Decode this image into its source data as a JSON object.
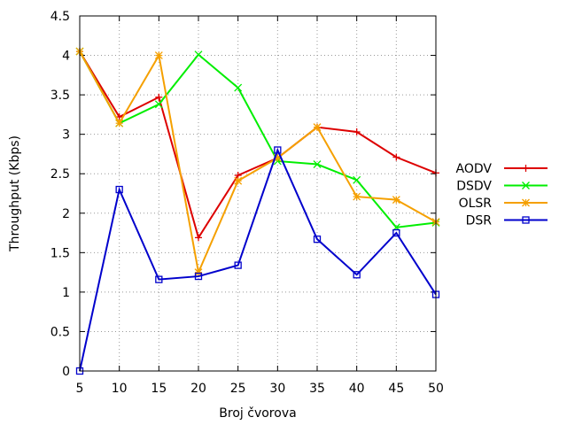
{
  "chart_data": {
    "type": "line",
    "title": "",
    "xlabel": "Broj čvorova",
    "ylabel": "Throughput (Kbps)",
    "x": [
      5,
      10,
      15,
      20,
      25,
      30,
      35,
      40,
      45,
      50
    ],
    "xlim": [
      5,
      50
    ],
    "ylim": [
      0,
      4.5
    ],
    "x_ticks": [
      "5",
      "10",
      "15",
      "20",
      "25",
      "30",
      "35",
      "40",
      "45",
      "50"
    ],
    "y_ticks": [
      "0",
      "0.5",
      "1",
      "1.5",
      "2",
      "2.5",
      "3",
      "3.5",
      "4",
      "4.5"
    ],
    "grid": true,
    "legend_position": "right",
    "series": [
      {
        "name": "AODV",
        "color": "#dd0000",
        "marker": "plus",
        "values": [
          4.05,
          3.22,
          3.47,
          1.69,
          2.48,
          2.7,
          3.09,
          3.03,
          2.71,
          2.51
        ]
      },
      {
        "name": "DSDV",
        "color": "#00ee00",
        "marker": "cross",
        "values": [
          4.05,
          3.14,
          3.38,
          4.01,
          3.59,
          2.66,
          2.62,
          2.42,
          1.82,
          1.88
        ]
      },
      {
        "name": "OLSR",
        "color": "#f5a000",
        "marker": "star",
        "values": [
          4.05,
          3.14,
          4.0,
          1.25,
          2.41,
          2.7,
          3.09,
          2.21,
          2.17,
          1.89
        ]
      },
      {
        "name": "DSR",
        "color": "#0000cc",
        "marker": "square",
        "values": [
          0.0,
          2.3,
          1.16,
          1.2,
          1.34,
          2.8,
          1.67,
          1.22,
          1.75,
          0.97
        ]
      }
    ]
  }
}
